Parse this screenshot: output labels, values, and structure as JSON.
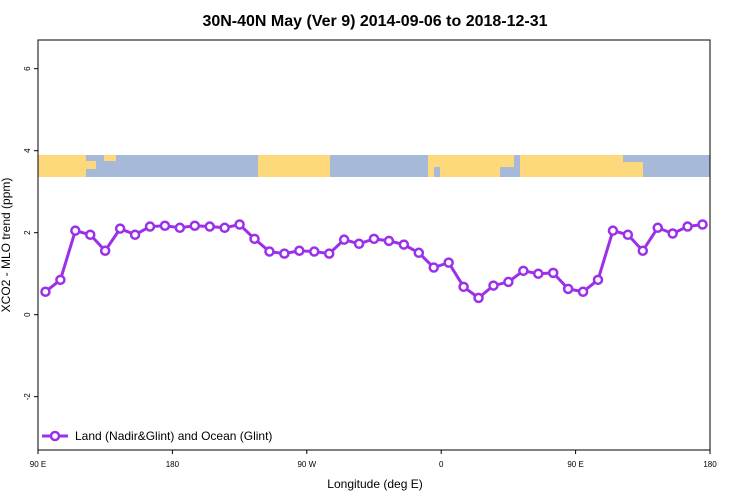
{
  "chart_data": {
    "type": "line",
    "title": "30N-40N May (Ver 9)   2014-09-06 to 2018-12-31",
    "xlabel": "Longitude (deg E)",
    "ylabel": "XCO2 - MLO trend (ppm)",
    "xlim": [
      90,
      540
    ],
    "ylim": [
      -3.3,
      6.7
    ],
    "xticks": [
      {
        "value": 90,
        "label": "90 E"
      },
      {
        "value": 180,
        "label": "180"
      },
      {
        "value": 270,
        "label": "90 W"
      },
      {
        "value": 360,
        "label": "0"
      },
      {
        "value": 450,
        "label": "90 E"
      },
      {
        "value": 540,
        "label": "180"
      }
    ],
    "yticks": [
      -2,
      0,
      2,
      4,
      6
    ],
    "legend_position": "bottom-left",
    "x": [
      95,
      105,
      115,
      125,
      135,
      145,
      155,
      165,
      175,
      185,
      195,
      205,
      215,
      225,
      235,
      245,
      255,
      265,
      275,
      285,
      295,
      305,
      315,
      325,
      335,
      345,
      355,
      365,
      375,
      385,
      395,
      405,
      415,
      425,
      435,
      445,
      455,
      465,
      475,
      485,
      495,
      505,
      515,
      525,
      535
    ],
    "series": [
      {
        "name": "Land (Nadir&Glint) and Ocean (Glint)",
        "color": "#9b30e8",
        "values": [
          0.56,
          0.85,
          2.05,
          1.95,
          1.56,
          2.1,
          1.95,
          2.15,
          2.17,
          2.12,
          2.17,
          2.15,
          2.12,
          2.2,
          1.85,
          1.54,
          1.49,
          1.56,
          1.54,
          1.49,
          1.83,
          1.73,
          1.85,
          1.8,
          1.71,
          1.51,
          1.15,
          1.27,
          0.68,
          0.41,
          0.71,
          0.8,
          1.07,
          1.0,
          1.02,
          0.63,
          0.56,
          0.85,
          2.05,
          1.95,
          1.56,
          2.12,
          1.98,
          2.15,
          2.2
        ]
      }
    ]
  }
}
